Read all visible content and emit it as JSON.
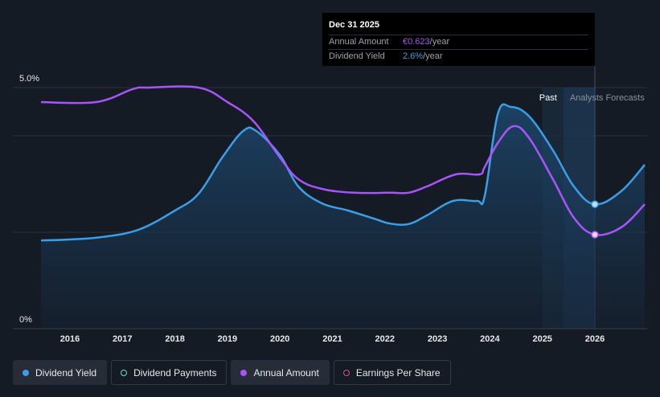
{
  "tooltip": {
    "date": "Dec 31 2025",
    "rows": [
      {
        "key": "Annual Amount",
        "value": "€0.623",
        "unit": "/year",
        "color": "#a855f7"
      },
      {
        "key": "Dividend Yield",
        "value": "2.6%",
        "unit": "/year",
        "color": "#3b9ee8"
      }
    ]
  },
  "legend": [
    {
      "label": "Dividend Yield",
      "color": "#3b9ee8",
      "filled": true,
      "active": true
    },
    {
      "label": "Dividend Payments",
      "color": "#5ee0c8",
      "filled": false,
      "active": false
    },
    {
      "label": "Annual Amount",
      "color": "#a855f7",
      "filled": true,
      "active": true
    },
    {
      "label": "Earnings Per Share",
      "color": "#d9508a",
      "filled": false,
      "active": false
    }
  ],
  "chart_data": {
    "type": "line",
    "x_tick_labels": [
      "2016",
      "2017",
      "2018",
      "2019",
      "2020",
      "2021",
      "2022",
      "2023",
      "2024",
      "2025",
      "2026"
    ],
    "y_tick_labels": [
      "5.0%",
      "0%"
    ],
    "ylim": [
      0,
      5.0
    ],
    "xlim": [
      2015.3,
      2026.95
    ],
    "region_labels": {
      "past": "Past",
      "forecast": "Analysts Forecasts"
    },
    "forecast_start": 2025.4,
    "past_band_start": 2025.0,
    "highlight_x": 2026.0,
    "series": [
      {
        "name": "Dividend Yield",
        "color": "#3b9ee8",
        "area": true,
        "points": [
          [
            2015.45,
            1.83
          ],
          [
            2016.0,
            1.85
          ],
          [
            2016.6,
            1.9
          ],
          [
            2017.3,
            2.05
          ],
          [
            2018.0,
            2.45
          ],
          [
            2018.45,
            2.8
          ],
          [
            2018.9,
            3.55
          ],
          [
            2019.3,
            4.1
          ],
          [
            2019.55,
            4.1
          ],
          [
            2020.0,
            3.6
          ],
          [
            2020.35,
            2.95
          ],
          [
            2020.8,
            2.6
          ],
          [
            2021.3,
            2.45
          ],
          [
            2021.8,
            2.28
          ],
          [
            2022.1,
            2.18
          ],
          [
            2022.45,
            2.17
          ],
          [
            2022.8,
            2.35
          ],
          [
            2023.3,
            2.65
          ],
          [
            2023.75,
            2.65
          ],
          [
            2023.9,
            2.75
          ],
          [
            2024.15,
            4.45
          ],
          [
            2024.4,
            4.6
          ],
          [
            2024.75,
            4.4
          ],
          [
            2025.2,
            3.7
          ],
          [
            2025.6,
            2.95
          ],
          [
            2026.0,
            2.58
          ],
          [
            2026.5,
            2.85
          ],
          [
            2026.95,
            3.4
          ]
        ]
      },
      {
        "name": "Annual Amount",
        "color": "#a855f7",
        "area": false,
        "points": [
          [
            2015.45,
            4.7
          ],
          [
            2016.5,
            4.7
          ],
          [
            2017.2,
            4.97
          ],
          [
            2017.5,
            5.0
          ],
          [
            2018.45,
            5.0
          ],
          [
            2019.0,
            4.7
          ],
          [
            2019.5,
            4.3
          ],
          [
            2020.0,
            3.55
          ],
          [
            2020.35,
            3.1
          ],
          [
            2020.8,
            2.9
          ],
          [
            2021.4,
            2.82
          ],
          [
            2022.1,
            2.82
          ],
          [
            2022.45,
            2.82
          ],
          [
            2022.8,
            2.95
          ],
          [
            2023.35,
            3.2
          ],
          [
            2023.8,
            3.2
          ],
          [
            2023.9,
            3.35
          ],
          [
            2024.15,
            3.85
          ],
          [
            2024.45,
            4.2
          ],
          [
            2024.75,
            3.95
          ],
          [
            2025.2,
            3.1
          ],
          [
            2025.6,
            2.3
          ],
          [
            2026.0,
            1.95
          ],
          [
            2026.5,
            2.1
          ],
          [
            2026.95,
            2.58
          ]
        ]
      }
    ]
  }
}
